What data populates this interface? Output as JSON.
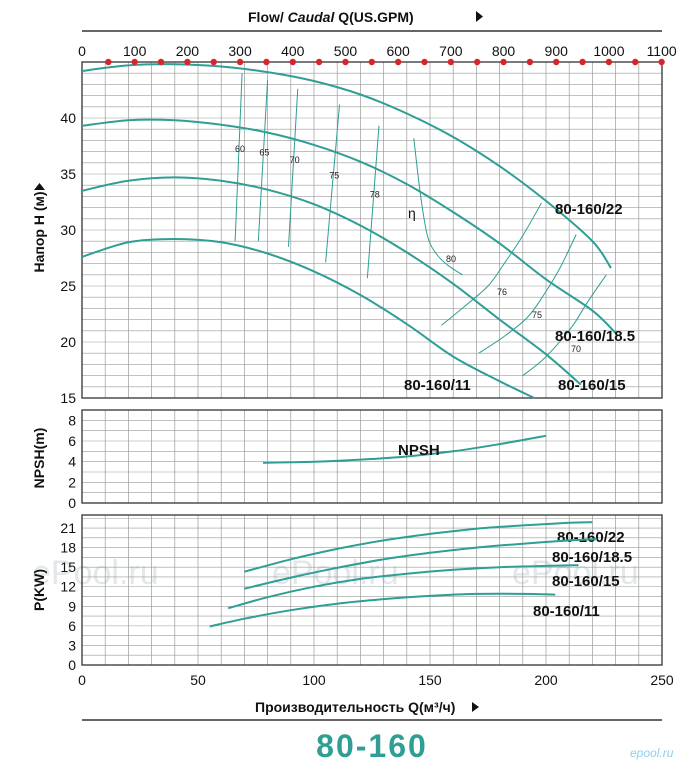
{
  "header": {
    "flow_title_prefix": "Flow/ ",
    "flow_title_italic": "Caudal",
    "flow_title_suffix": " Q(US.GPM)",
    "x_axis_title": "Производительность Q(м³/ч)",
    "model_title": "80-160",
    "site_logo": "epool.ru",
    "watermarks": [
      "ePool.ru",
      "ePool.ru",
      "ePool.ru"
    ]
  },
  "colors": {
    "curve": "#2f9e95",
    "grid": "#9a9a9a",
    "frame": "#333333",
    "marker": "#d6262b"
  },
  "chart_data": [
    {
      "id": "head",
      "type": "line",
      "ylabel": "Напор H (м)",
      "xlim": [
        0,
        250
      ],
      "ylim": [
        15,
        45
      ],
      "yticks": [
        15,
        20,
        25,
        30,
        35,
        40
      ],
      "secondary_x": {
        "label": "Flow/ Caudal Q(US.GPM)",
        "ticks": [
          0,
          100,
          200,
          300,
          400,
          500,
          600,
          700,
          800,
          900,
          1000,
          1100
        ],
        "marker_step": 50
      },
      "series": [
        {
          "name": "80-160/22",
          "x": [
            0,
            20,
            40,
            60,
            80,
            100,
            120,
            140,
            160,
            180,
            200,
            220,
            228
          ],
          "y": [
            44.2,
            44.7,
            44.8,
            44.6,
            44.1,
            43.3,
            42.1,
            40.4,
            38.3,
            35.7,
            32.6,
            29.0,
            26.6
          ]
        },
        {
          "name": "80-160/18.5",
          "x": [
            0,
            20,
            40,
            60,
            80,
            100,
            120,
            140,
            160,
            180,
            200,
            220,
            230
          ],
          "y": [
            39.3,
            39.8,
            39.8,
            39.4,
            38.7,
            37.6,
            36.1,
            34.1,
            31.6,
            28.8,
            25.6,
            22.8,
            20.8
          ]
        },
        {
          "name": "80-160/15",
          "x": [
            0,
            20,
            40,
            60,
            80,
            100,
            120,
            140,
            160,
            180,
            200,
            215
          ],
          "y": [
            33.5,
            34.4,
            34.7,
            34.4,
            33.6,
            32.3,
            30.4,
            28.0,
            25.2,
            22.0,
            18.9,
            16.2
          ]
        },
        {
          "name": "80-160/11",
          "x": [
            0,
            20,
            40,
            60,
            80,
            100,
            120,
            140,
            160,
            180,
            195
          ],
          "y": [
            27.6,
            28.9,
            29.2,
            28.9,
            27.9,
            26.3,
            24.2,
            21.6,
            18.7,
            16.5,
            15.0
          ]
        }
      ],
      "efficiency_lines": [
        {
          "label": "60",
          "x": [
            66,
            69
          ],
          "y": [
            29.0,
            44.0
          ]
        },
        {
          "label": "65",
          "x": [
            76,
            80
          ],
          "y": [
            29.0,
            43.4
          ]
        },
        {
          "label": "70",
          "x": [
            89,
            93
          ],
          "y": [
            28.5,
            42.6
          ]
        },
        {
          "label": "75",
          "x": [
            105,
            111
          ],
          "y": [
            27.1,
            41.2
          ]
        },
        {
          "label": "78",
          "x": [
            123,
            128
          ],
          "y": [
            25.7,
            39.3
          ]
        }
      ],
      "efficiency_contours": [
        {
          "label": "80",
          "x": [
            143,
            146,
            149,
            153,
            158,
            164
          ],
          "y": [
            38.2,
            33.0,
            29.4,
            27.8,
            26.8,
            26.0
          ]
        },
        {
          "label": "76",
          "x": [
            155,
            165,
            175,
            182,
            190,
            198
          ],
          "y": [
            21.5,
            23.2,
            25.0,
            27.0,
            29.5,
            32.4
          ]
        },
        {
          "label": "75",
          "x": [
            171,
            182,
            192,
            199,
            206,
            213
          ],
          "y": [
            19.0,
            20.5,
            22.2,
            24.2,
            26.6,
            29.6
          ]
        },
        {
          "label": "70",
          "x": [
            190,
            198,
            205,
            212,
            218,
            226
          ],
          "y": [
            17.0,
            18.3,
            19.8,
            21.6,
            23.6,
            26.0
          ]
        }
      ],
      "efficiency_symbol": "η"
    },
    {
      "id": "npsh",
      "type": "line",
      "ylabel": "NPSH(m)",
      "xlim": [
        0,
        250
      ],
      "ylim": [
        0,
        9
      ],
      "yticks": [
        0,
        2,
        4,
        6,
        8
      ],
      "series": [
        {
          "name": "NPSH",
          "x": [
            78,
            100,
            120,
            140,
            160,
            180,
            200
          ],
          "y": [
            3.9,
            4.0,
            4.2,
            4.5,
            5.0,
            5.7,
            6.5
          ]
        }
      ]
    },
    {
      "id": "power",
      "type": "line",
      "ylabel": "P(KW)",
      "xlabel": "Производительность Q(м³/ч)",
      "xlim": [
        0,
        250
      ],
      "ylim": [
        0,
        23
      ],
      "yticks": [
        0,
        3,
        6,
        9,
        12,
        15,
        18,
        21
      ],
      "xticks": [
        0,
        50,
        100,
        150,
        200,
        250
      ],
      "series": [
        {
          "name": "80-160/22",
          "x": [
            70,
            90,
            110,
            130,
            150,
            170,
            190,
            210,
            220
          ],
          "y": [
            14.3,
            16.2,
            17.8,
            19.1,
            20.1,
            20.9,
            21.4,
            21.8,
            21.9
          ]
        },
        {
          "name": "80-160/18.5",
          "x": [
            70,
            90,
            110,
            130,
            150,
            170,
            190,
            210,
            222
          ],
          "y": [
            11.7,
            13.4,
            14.9,
            16.2,
            17.2,
            18.0,
            18.6,
            19.1,
            19.3
          ]
        },
        {
          "name": "80-160/15",
          "x": [
            63,
            80,
            100,
            120,
            140,
            160,
            180,
            200,
            214
          ],
          "y": [
            8.7,
            10.4,
            12.0,
            13.2,
            14.0,
            14.6,
            15.0,
            15.2,
            15.3
          ]
        },
        {
          "name": "80-160/11",
          "x": [
            55,
            70,
            90,
            110,
            130,
            150,
            170,
            190,
            204
          ],
          "y": [
            5.9,
            7.1,
            8.4,
            9.4,
            10.1,
            10.6,
            10.9,
            10.9,
            10.8
          ]
        }
      ]
    }
  ]
}
